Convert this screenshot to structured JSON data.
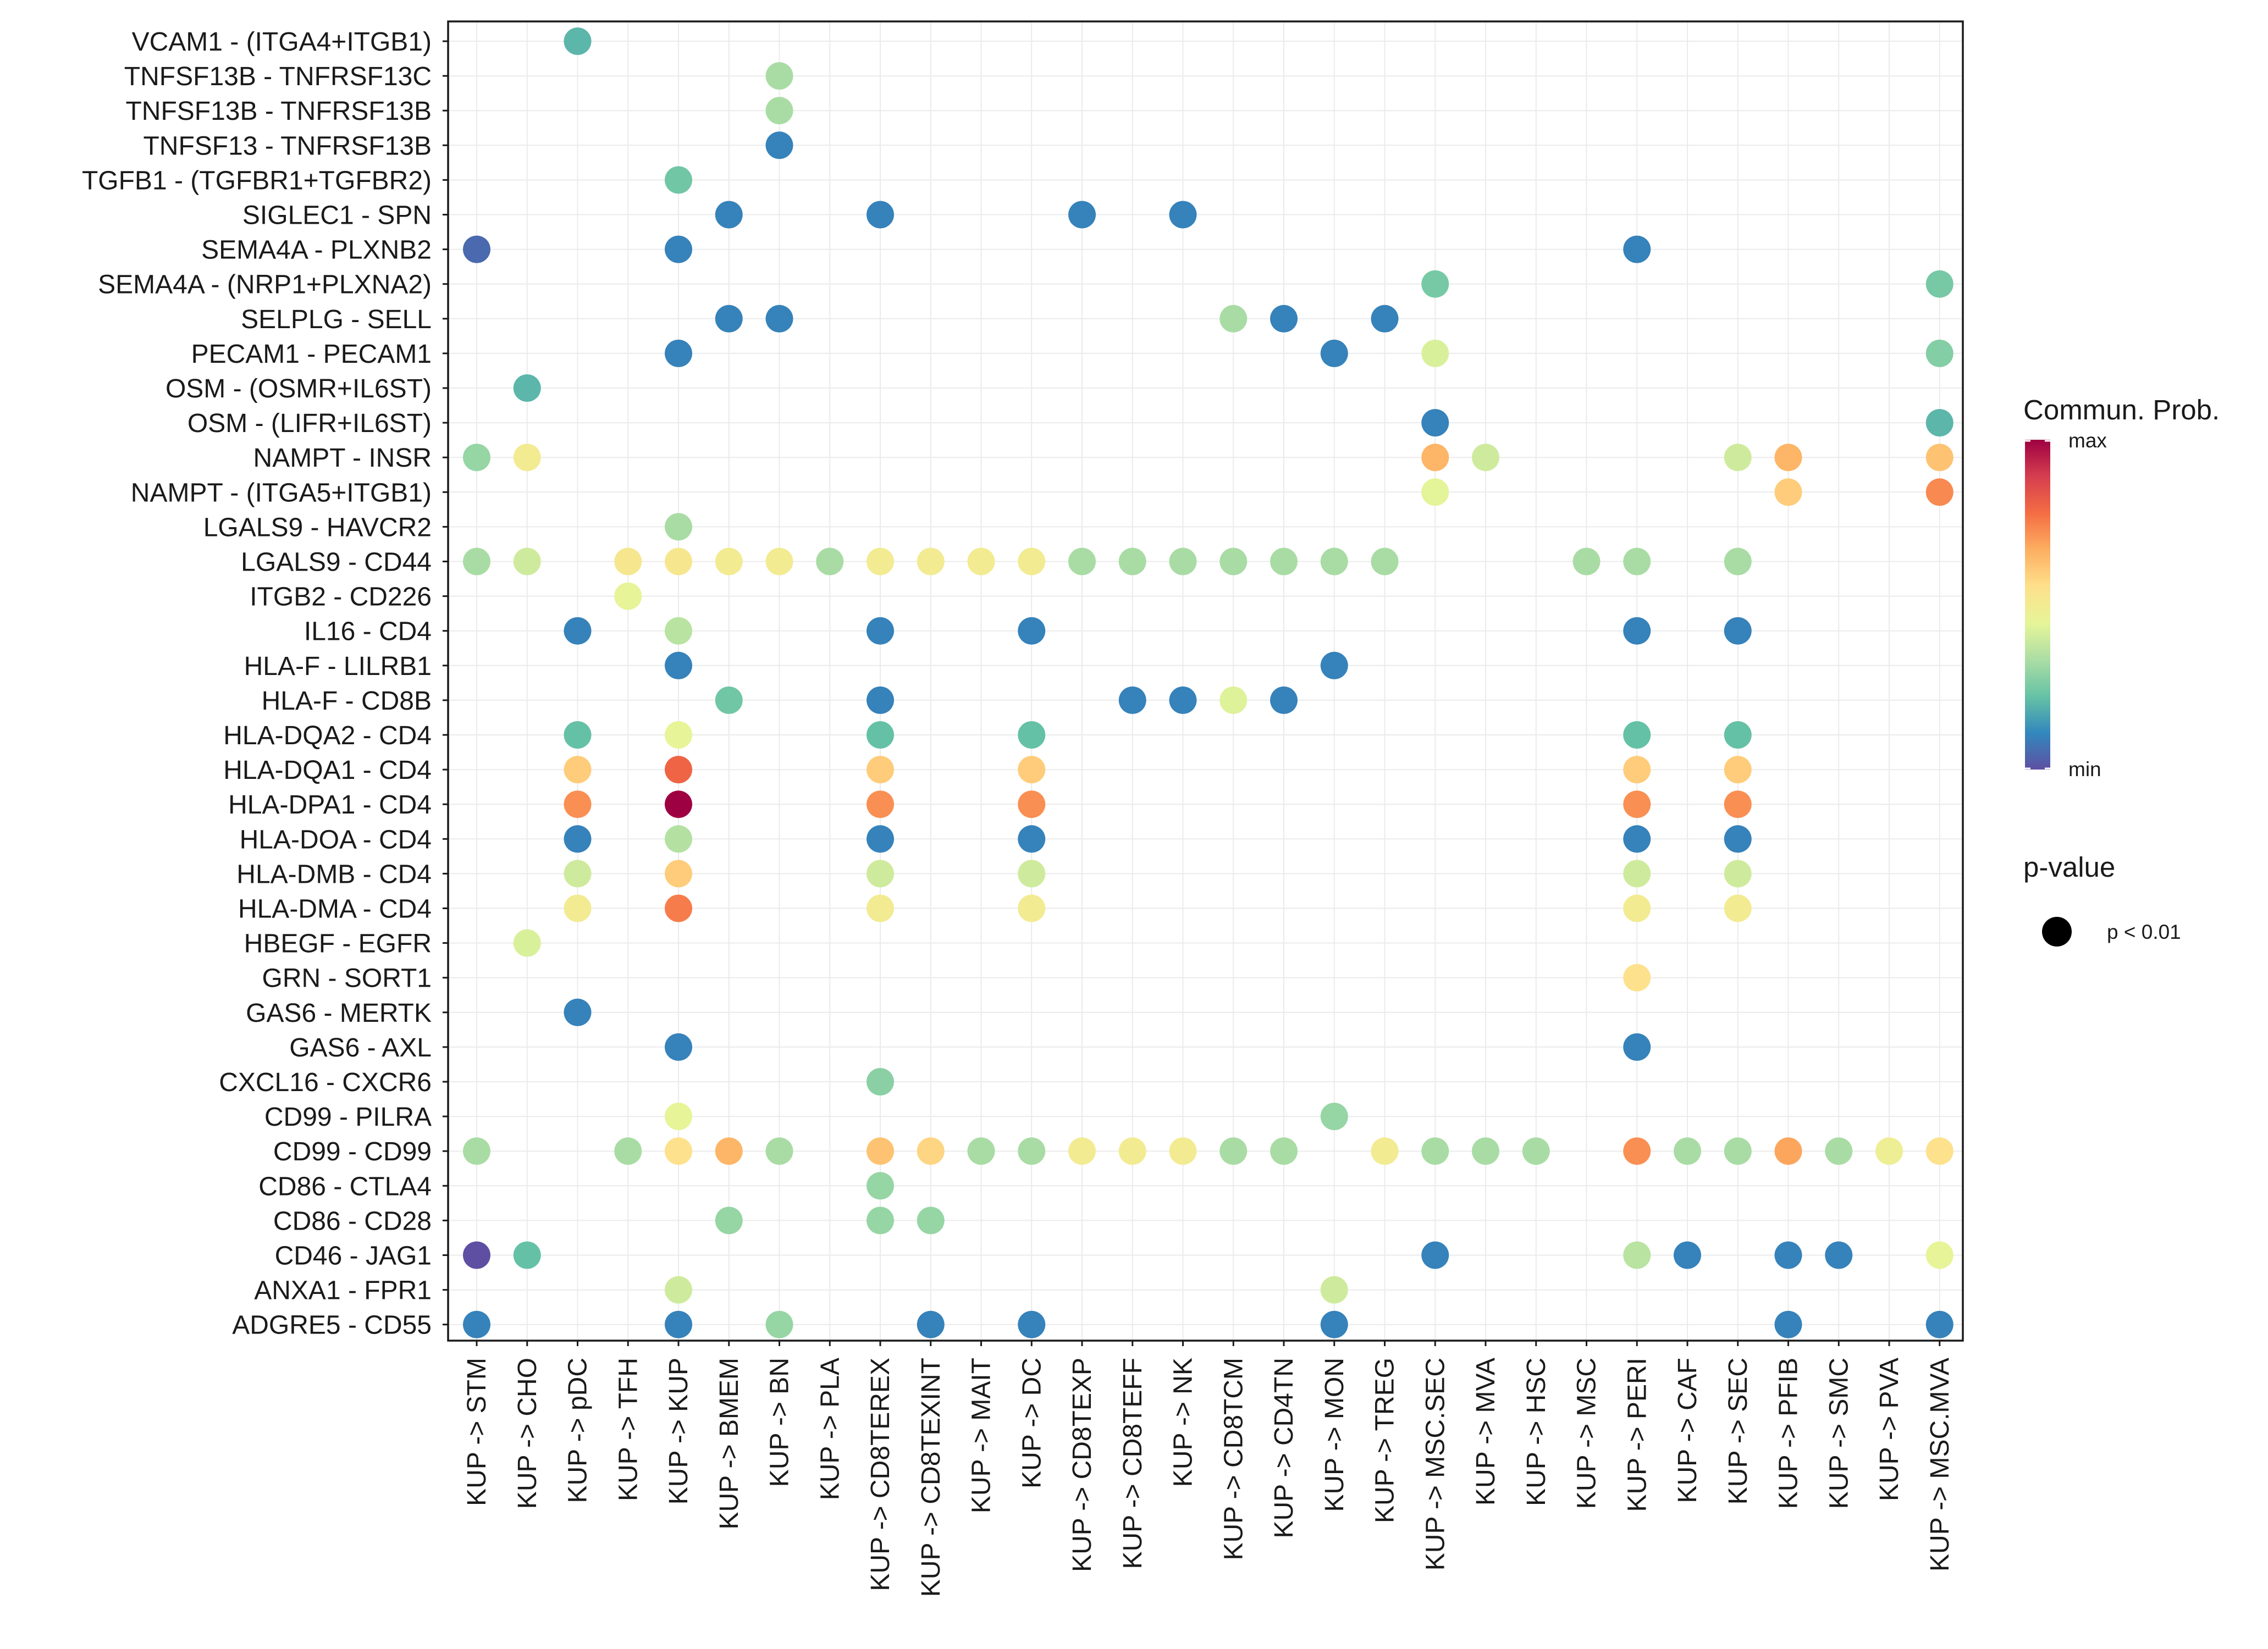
{
  "chart_data": {
    "type": "dot",
    "y_labels": [
      "VCAM1 - (ITGA4+ITGB1)",
      "TNFSF13B - TNFRSF13C",
      "TNFSF13B - TNFRSF13B",
      "TNFSF13 - TNFRSF13B",
      "TGFB1 - (TGFBR1+TGFBR2)",
      "SIGLEC1 - SPN",
      "SEMA4A - PLXNB2",
      "SEMA4A - (NRP1+PLXNA2)",
      "SELPLG - SELL",
      "PECAM1 - PECAM1",
      "OSM - (OSMR+IL6ST)",
      "OSM - (LIFR+IL6ST)",
      "NAMPT - INSR",
      "NAMPT - (ITGA5+ITGB1)",
      "LGALS9 - HAVCR2",
      "LGALS9 - CD44",
      "ITGB2 - CD226",
      "IL16 - CD4",
      "HLA-F - LILRB1",
      "HLA-F - CD8B",
      "HLA-DQA2 - CD4",
      "HLA-DQA1 - CD4",
      "HLA-DPA1 - CD4",
      "HLA-DOA - CD4",
      "HLA-DMB - CD4",
      "HLA-DMA - CD4",
      "HBEGF - EGFR",
      "GRN - SORT1",
      "GAS6 - MERTK",
      "GAS6 - AXL",
      "CXCL16 - CXCR6",
      "CD99 - PILRA",
      "CD99 - CD99",
      "CD86 - CTLA4",
      "CD86 - CD28",
      "CD46 - JAG1",
      "ANXA1 - FPR1",
      "ADGRE5 - CD55"
    ],
    "x_labels": [
      "KUP -> STM",
      "KUP -> CHO",
      "KUP -> pDC",
      "KUP -> TFH",
      "KUP -> KUP",
      "KUP -> BMEM",
      "KUP -> BN",
      "KUP -> PLA",
      "KUP -> CD8TEREX",
      "KUP -> CD8TEXINT",
      "KUP -> MAIT",
      "KUP -> DC",
      "KUP -> CD8TEXP",
      "KUP -> CD8TEFF",
      "KUP -> NK",
      "KUP -> CD8TCM",
      "KUP -> CD4TN",
      "KUP -> MON",
      "KUP -> TREG",
      "KUP -> MSC.SEC",
      "KUP -> MVA",
      "KUP -> HSC",
      "KUP -> MSC",
      "KUP -> PERI",
      "KUP -> CAF",
      "KUP -> SEC",
      "KUP -> PFIB",
      "KUP -> SMC",
      "KUP -> PVA",
      "KUP -> MSC.MVA"
    ],
    "points": [
      [
        0,
        2,
        0.2
      ],
      [
        1,
        6,
        0.33
      ],
      [
        2,
        6,
        0.33
      ],
      [
        3,
        6,
        0.1
      ],
      [
        4,
        4,
        0.24
      ],
      [
        5,
        5,
        0.1
      ],
      [
        5,
        8,
        0.1
      ],
      [
        5,
        12,
        0.1
      ],
      [
        5,
        14,
        0.1
      ],
      [
        6,
        0,
        0.05
      ],
      [
        6,
        4,
        0.1
      ],
      [
        6,
        23,
        0.1
      ],
      [
        7,
        19,
        0.25
      ],
      [
        7,
        29,
        0.25
      ],
      [
        8,
        5,
        0.1
      ],
      [
        8,
        6,
        0.1
      ],
      [
        8,
        15,
        0.33
      ],
      [
        8,
        16,
        0.1
      ],
      [
        8,
        18,
        0.1
      ],
      [
        9,
        4,
        0.1
      ],
      [
        9,
        17,
        0.1
      ],
      [
        9,
        19,
        0.42
      ],
      [
        9,
        29,
        0.27
      ],
      [
        10,
        1,
        0.2
      ],
      [
        11,
        19,
        0.1
      ],
      [
        11,
        29,
        0.2
      ],
      [
        12,
        0,
        0.3
      ],
      [
        12,
        1,
        0.5
      ],
      [
        12,
        19,
        0.65
      ],
      [
        12,
        20,
        0.4
      ],
      [
        12,
        25,
        0.4
      ],
      [
        12,
        26,
        0.65
      ],
      [
        12,
        29,
        0.62
      ],
      [
        13,
        19,
        0.44
      ],
      [
        13,
        26,
        0.6
      ],
      [
        13,
        29,
        0.73
      ],
      [
        14,
        4,
        0.33
      ],
      [
        15,
        0,
        0.33
      ],
      [
        15,
        1,
        0.4
      ],
      [
        15,
        3,
        0.52
      ],
      [
        15,
        4,
        0.52
      ],
      [
        15,
        5,
        0.5
      ],
      [
        15,
        6,
        0.5
      ],
      [
        15,
        7,
        0.33
      ],
      [
        15,
        8,
        0.5
      ],
      [
        15,
        9,
        0.5
      ],
      [
        15,
        10,
        0.5
      ],
      [
        15,
        11,
        0.5
      ],
      [
        15,
        12,
        0.33
      ],
      [
        15,
        13,
        0.33
      ],
      [
        15,
        14,
        0.33
      ],
      [
        15,
        15,
        0.33
      ],
      [
        15,
        16,
        0.33
      ],
      [
        15,
        17,
        0.33
      ],
      [
        15,
        18,
        0.33
      ],
      [
        15,
        22,
        0.33
      ],
      [
        15,
        23,
        0.33
      ],
      [
        15,
        25,
        0.33
      ],
      [
        16,
        3,
        0.45
      ],
      [
        17,
        2,
        0.1
      ],
      [
        17,
        4,
        0.36
      ],
      [
        17,
        8,
        0.1
      ],
      [
        17,
        11,
        0.1
      ],
      [
        17,
        23,
        0.1
      ],
      [
        17,
        25,
        0.1
      ],
      [
        18,
        4,
        0.1
      ],
      [
        18,
        17,
        0.1
      ],
      [
        19,
        5,
        0.24
      ],
      [
        19,
        8,
        0.1
      ],
      [
        19,
        13,
        0.1
      ],
      [
        19,
        14,
        0.1
      ],
      [
        19,
        15,
        0.43
      ],
      [
        19,
        16,
        0.1
      ],
      [
        20,
        2,
        0.22
      ],
      [
        20,
        4,
        0.45
      ],
      [
        20,
        8,
        0.22
      ],
      [
        20,
        11,
        0.22
      ],
      [
        20,
        23,
        0.22
      ],
      [
        20,
        25,
        0.22
      ],
      [
        21,
        2,
        0.6
      ],
      [
        21,
        4,
        0.8
      ],
      [
        21,
        8,
        0.6
      ],
      [
        21,
        11,
        0.6
      ],
      [
        21,
        23,
        0.6
      ],
      [
        21,
        25,
        0.6
      ],
      [
        22,
        2,
        0.72
      ],
      [
        22,
        4,
        1.0
      ],
      [
        22,
        8,
        0.72
      ],
      [
        22,
        11,
        0.72
      ],
      [
        22,
        23,
        0.72
      ],
      [
        22,
        25,
        0.72
      ],
      [
        23,
        2,
        0.1
      ],
      [
        23,
        4,
        0.35
      ],
      [
        23,
        8,
        0.1
      ],
      [
        23,
        11,
        0.1
      ],
      [
        23,
        23,
        0.1
      ],
      [
        23,
        25,
        0.1
      ],
      [
        24,
        2,
        0.4
      ],
      [
        24,
        4,
        0.6
      ],
      [
        24,
        8,
        0.4
      ],
      [
        24,
        11,
        0.4
      ],
      [
        24,
        23,
        0.4
      ],
      [
        24,
        25,
        0.4
      ],
      [
        25,
        2,
        0.5
      ],
      [
        25,
        4,
        0.75
      ],
      [
        25,
        8,
        0.5
      ],
      [
        25,
        11,
        0.5
      ],
      [
        25,
        23,
        0.5
      ],
      [
        25,
        25,
        0.5
      ],
      [
        26,
        1,
        0.42
      ],
      [
        27,
        23,
        0.55
      ],
      [
        28,
        2,
        0.1
      ],
      [
        29,
        4,
        0.1
      ],
      [
        29,
        23,
        0.1
      ],
      [
        30,
        8,
        0.28
      ],
      [
        31,
        4,
        0.45
      ],
      [
        31,
        17,
        0.3
      ],
      [
        32,
        0,
        0.33
      ],
      [
        32,
        3,
        0.33
      ],
      [
        32,
        4,
        0.55
      ],
      [
        32,
        5,
        0.65
      ],
      [
        32,
        6,
        0.33
      ],
      [
        32,
        8,
        0.62
      ],
      [
        32,
        9,
        0.58
      ],
      [
        32,
        10,
        0.33
      ],
      [
        32,
        11,
        0.33
      ],
      [
        32,
        12,
        0.5
      ],
      [
        32,
        13,
        0.5
      ],
      [
        32,
        14,
        0.5
      ],
      [
        32,
        15,
        0.33
      ],
      [
        32,
        16,
        0.33
      ],
      [
        32,
        18,
        0.5
      ],
      [
        32,
        19,
        0.33
      ],
      [
        32,
        20,
        0.33
      ],
      [
        32,
        21,
        0.33
      ],
      [
        32,
        23,
        0.72
      ],
      [
        32,
        24,
        0.33
      ],
      [
        32,
        25,
        0.33
      ],
      [
        32,
        26,
        0.68
      ],
      [
        32,
        27,
        0.33
      ],
      [
        32,
        28,
        0.48
      ],
      [
        32,
        29,
        0.55
      ],
      [
        33,
        8,
        0.3
      ],
      [
        34,
        5,
        0.3
      ],
      [
        34,
        8,
        0.3
      ],
      [
        34,
        9,
        0.3
      ],
      [
        35,
        0,
        0.0
      ],
      [
        35,
        1,
        0.22
      ],
      [
        35,
        19,
        0.1
      ],
      [
        35,
        23,
        0.36
      ],
      [
        35,
        24,
        0.1
      ],
      [
        35,
        26,
        0.1
      ],
      [
        35,
        27,
        0.1
      ],
      [
        35,
        29,
        0.45
      ],
      [
        36,
        4,
        0.4
      ],
      [
        36,
        17,
        0.4
      ],
      [
        37,
        0,
        0.1
      ],
      [
        37,
        4,
        0.1
      ],
      [
        37,
        6,
        0.3
      ],
      [
        37,
        9,
        0.1
      ],
      [
        37,
        11,
        0.1
      ],
      [
        37,
        17,
        0.1
      ],
      [
        37,
        26,
        0.1
      ],
      [
        37,
        29,
        0.1
      ]
    ],
    "legend": {
      "color_title": "Commun. Prob.",
      "color_max": "max",
      "color_min": "min",
      "size_title": "p-value",
      "size_label": "p < 0.01"
    },
    "colors": {
      "scale": [
        "#5E4FA2",
        "#3288BD",
        "#66C2A5",
        "#ABDDA4",
        "#E6F598",
        "#FEE08B",
        "#FDAE61",
        "#F46D43",
        "#D53E4F",
        "#9E0142"
      ],
      "grid": "#EBEBEB",
      "frame": "#1a1a1a"
    }
  }
}
